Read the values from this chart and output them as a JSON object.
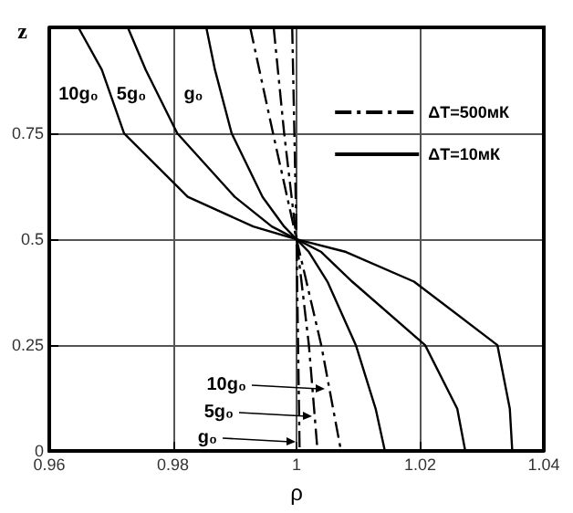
{
  "chart_data": {
    "type": "line",
    "xlabel": "ρ",
    "ylabel": "z",
    "xlim": [
      0.96,
      1.04
    ],
    "xticks": [
      0.96,
      0.98,
      1,
      1.02,
      1.04
    ],
    "ylim": [
      0,
      1
    ],
    "yticks": [
      0,
      0.25,
      0.5,
      0.75
    ],
    "grid": true,
    "legend": "top right",
    "marker": "none",
    "series": [
      {
        "name": "ΔT=500мК",
        "color": "#000000",
        "line_style": "dashed",
        "x": [
          0.9925,
          0.9962,
          1,
          1.004,
          1.0072
        ],
        "values": [
          1,
          0.75,
          0.5,
          0.25,
          0
        ]
      },
      {
        "color": "#000000",
        "line_style": "dashed",
        "x": [
          0.9963,
          0.998,
          1,
          1.002,
          1.0034
        ],
        "values": [
          1,
          0.75,
          0.5,
          0.25,
          0
        ]
      },
      {
        "color": "#000000",
        "line_style": "dashed",
        "x": [
          0.9993,
          1,
          1.0005
        ],
        "values": [
          1,
          0.5,
          0
        ]
      },
      {
        "name": "ΔT=10мК",
        "color": "#000000",
        "line_style": "solid",
        "x": [
          0.9854,
          0.9868,
          0.9895,
          0.9945,
          0.998,
          1,
          1.002,
          1.005,
          1.0096,
          1.0128,
          1.0143
        ],
        "values": [
          1,
          0.9,
          0.75,
          0.6,
          0.53,
          0.5,
          0.47,
          0.4,
          0.25,
          0.1,
          0
        ]
      },
      {
        "color": "#000000",
        "line_style": "solid",
        "x": [
          0.9727,
          0.9756,
          0.9807,
          0.99,
          0.996,
          1,
          1.004,
          1.009,
          1.0208,
          1.026,
          1.0273
        ],
        "values": [
          1,
          0.9,
          0.75,
          0.6,
          0.53,
          0.5,
          0.47,
          0.4,
          0.25,
          0.1,
          0
        ]
      },
      {
        "color": "#000000",
        "line_style": "solid",
        "x": [
          0.9647,
          0.9685,
          0.9721,
          0.9824,
          0.993,
          1,
          1.008,
          1.019,
          1.0325,
          1.0345,
          1.0349
        ],
        "values": [
          1,
          0.9,
          0.75,
          0.6,
          0.53,
          0.5,
          0.47,
          0.4,
          0.25,
          0.1,
          0
        ]
      }
    ],
    "annotations": [
      "10g₀",
      "5g₀",
      "g₀",
      "10g₀",
      "5g₀",
      "g₀"
    ]
  }
}
